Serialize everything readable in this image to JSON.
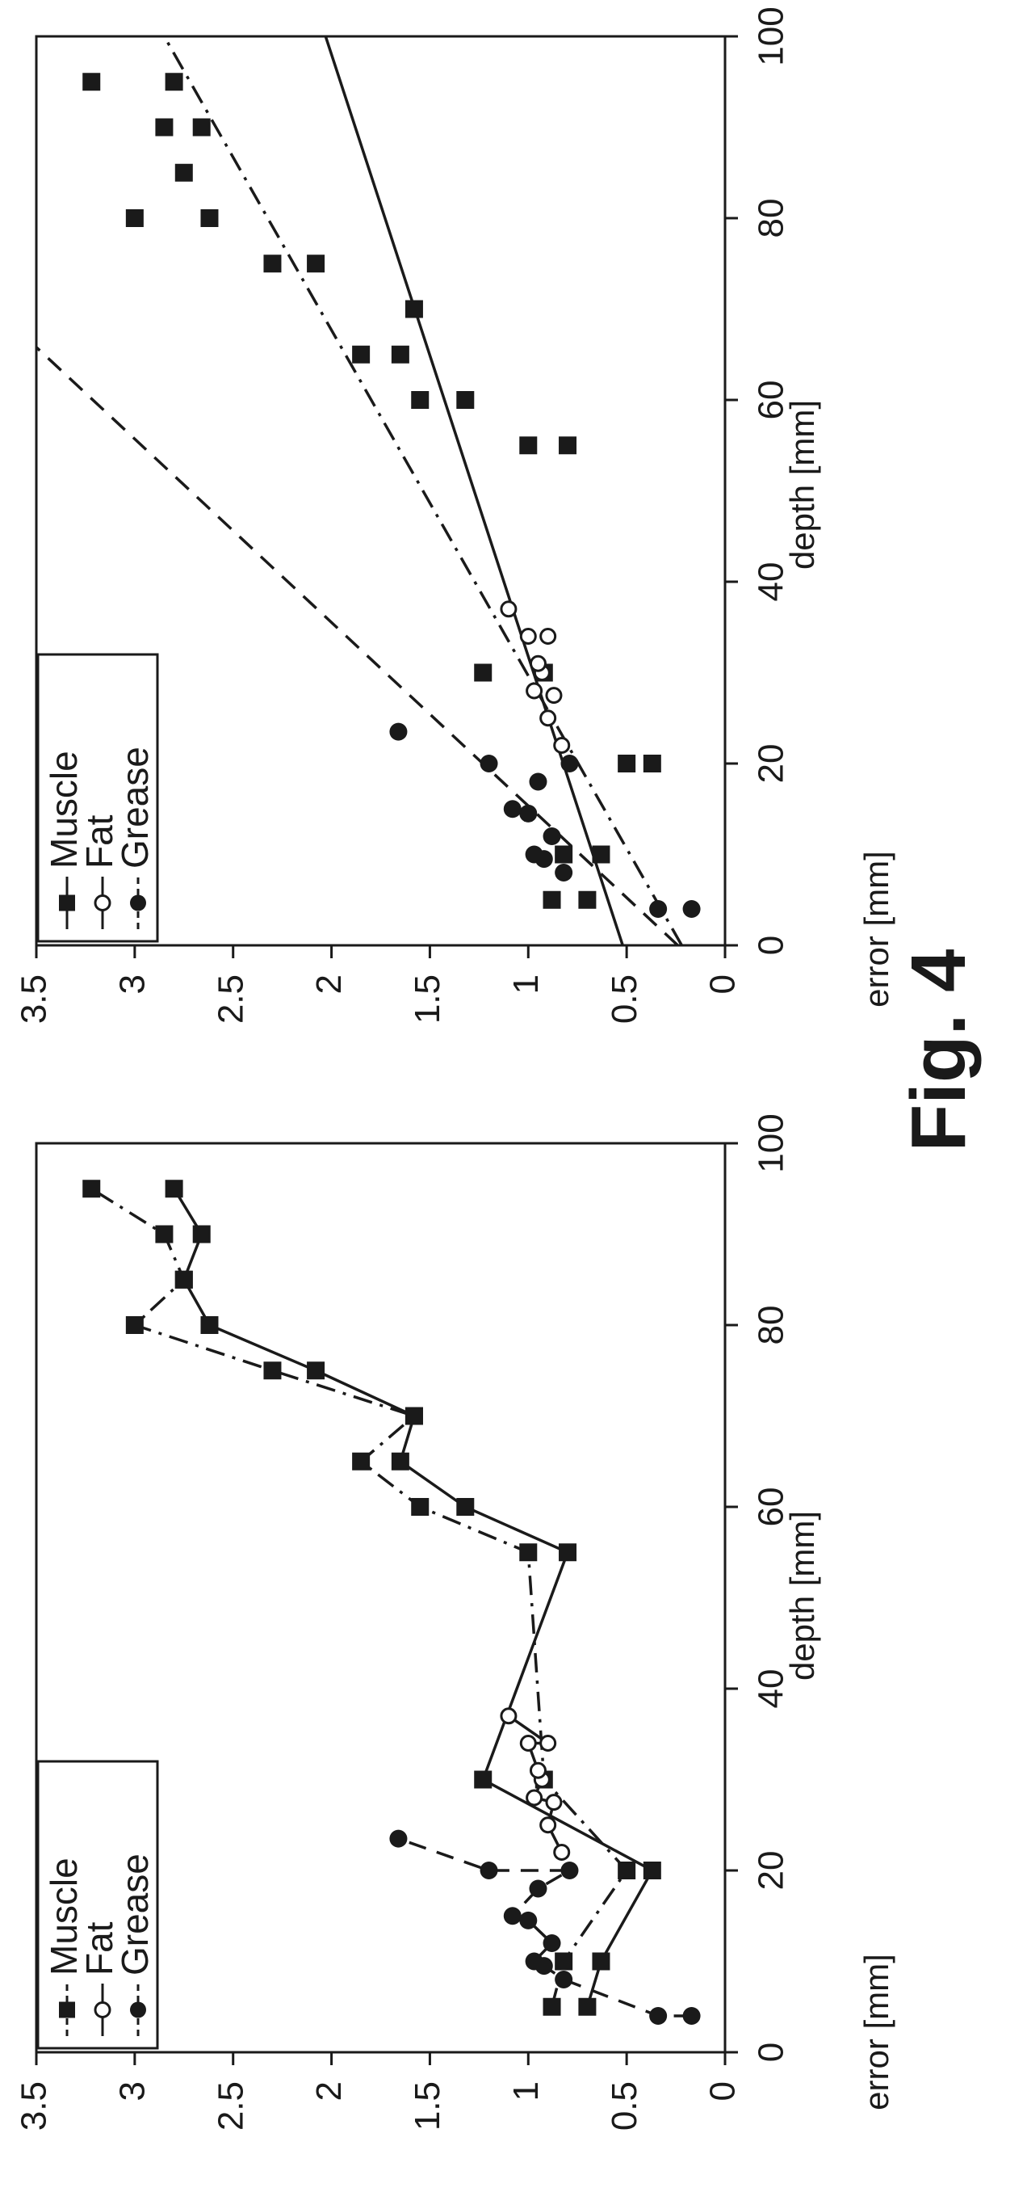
{
  "figure": {
    "label": "Fig. 4"
  },
  "chart_data": [
    {
      "type": "line",
      "title": "",
      "xlabel": "depth [mm]",
      "ylabel": "error [mm]",
      "xlim": [
        0,
        100
      ],
      "ylim": [
        0,
        3.5
      ],
      "xticks": [
        "0",
        "20",
        "40",
        "60",
        "80",
        "100"
      ],
      "yticks": [
        "0",
        "0.5",
        "1",
        "1.5",
        "2",
        "2.5",
        "3",
        "3.5"
      ],
      "legend": {
        "placement": "top-left",
        "entries": [
          "Muscle",
          "Fat",
          "Grease"
        ]
      },
      "series": [
        {
          "name": "Muscle",
          "marker": "square",
          "style": "dash-dot",
          "color": "#1a1a1a",
          "x": [
            5,
            10,
            20,
            30,
            55,
            60,
            65,
            70,
            75,
            80,
            85,
            90,
            95
          ],
          "y": [
            0.88,
            0.82,
            0.5,
            0.92,
            1.0,
            1.55,
            1.85,
            1.58,
            2.3,
            3.0,
            2.75,
            2.85,
            3.22
          ]
        },
        {
          "name": "Muscle",
          "marker": "square",
          "style": "solid",
          "color": "#1a1a1a",
          "x": [
            5,
            10,
            20,
            30,
            55,
            60,
            65,
            70,
            75,
            80,
            85,
            90,
            95
          ],
          "y": [
            0.7,
            0.63,
            0.37,
            1.23,
            0.8,
            1.32,
            1.65,
            1.58,
            2.08,
            2.62,
            2.75,
            2.66,
            2.8
          ]
        },
        {
          "name": "Fat",
          "marker": "open-circle",
          "style": "solid",
          "color": "#1a1a1a",
          "x": [
            22,
            25,
            27.5,
            28,
            30,
            31,
            34,
            34,
            37
          ],
          "y": [
            0.83,
            0.9,
            0.87,
            0.97,
            0.93,
            0.95,
            1.0,
            0.9,
            1.1
          ]
        },
        {
          "name": "Grease",
          "marker": "filled-circle",
          "style": "dashed",
          "color": "#1a1a1a",
          "x": [
            4,
            4,
            8,
            9.5,
            10,
            12,
            14.5,
            15,
            18,
            20,
            20,
            23.5
          ],
          "y": [
            0.17,
            0.34,
            0.82,
            0.92,
            0.97,
            0.88,
            1.0,
            1.08,
            0.95,
            0.79,
            1.2,
            1.66
          ]
        }
      ]
    },
    {
      "type": "scatter",
      "title": "",
      "xlabel": "depth [mm]",
      "ylabel": "error [mm]",
      "xlim": [
        0,
        100
      ],
      "ylim": [
        0,
        3.5
      ],
      "xticks": [
        "0",
        "20",
        "40",
        "60",
        "80",
        "100"
      ],
      "yticks": [
        "0",
        "0.5",
        "1",
        "1.5",
        "2",
        "2.5",
        "3",
        "3.5"
      ],
      "legend": {
        "placement": "top-left",
        "entries": [
          "Muscle",
          "Fat",
          "Grease"
        ]
      },
      "series": [
        {
          "name": "Muscle",
          "marker": "square",
          "color": "#1a1a1a",
          "x": [
            5,
            10,
            20,
            30,
            55,
            60,
            65,
            70,
            75,
            80,
            85,
            90,
            95,
            5,
            10,
            20,
            30,
            55,
            60,
            65,
            75,
            80,
            90,
            95
          ],
          "y": [
            0.88,
            0.82,
            0.5,
            0.92,
            1.0,
            1.55,
            1.85,
            1.58,
            2.3,
            3.0,
            2.75,
            2.85,
            3.22,
            0.7,
            0.63,
            0.37,
            1.23,
            0.8,
            1.32,
            1.65,
            2.08,
            2.62,
            2.66,
            2.8
          ]
        },
        {
          "name": "Fat",
          "marker": "open-circle",
          "color": "#1a1a1a",
          "x": [
            22,
            25,
            27.5,
            28,
            30,
            31,
            34,
            34,
            37
          ],
          "y": [
            0.83,
            0.9,
            0.87,
            0.97,
            0.93,
            0.95,
            1.0,
            0.9,
            1.1
          ]
        },
        {
          "name": "Grease",
          "marker": "filled-circle",
          "color": "#1a1a1a",
          "x": [
            4,
            4,
            8,
            9.5,
            10,
            12,
            14.5,
            15,
            18,
            20,
            20,
            23.5
          ],
          "y": [
            0.17,
            0.34,
            0.82,
            0.92,
            0.97,
            0.88,
            1.0,
            1.08,
            0.95,
            0.79,
            1.2,
            1.66
          ]
        }
      ],
      "fits": [
        {
          "name": "Muscle",
          "style": "dash-dot",
          "x": [
            0,
            100
          ],
          "y": [
            0.22,
            2.85
          ]
        },
        {
          "name": "Fat",
          "style": "solid",
          "x": [
            0,
            100
          ],
          "y": [
            0.52,
            2.03
          ]
        },
        {
          "name": "Grease",
          "style": "dashed",
          "x": [
            0,
            65.8
          ],
          "y": [
            0.24,
            3.5
          ]
        }
      ]
    }
  ]
}
